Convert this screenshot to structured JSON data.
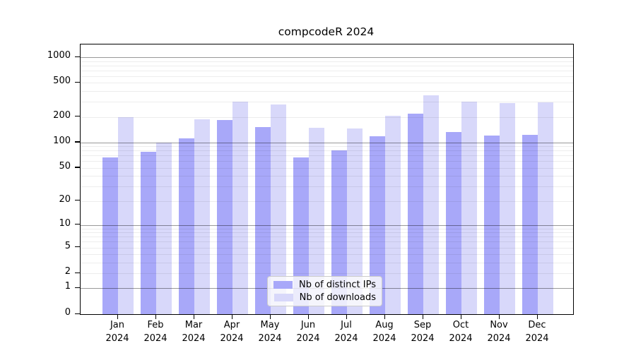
{
  "chart_data": {
    "type": "bar",
    "title": "compcodeR 2024",
    "categories": [
      "Jan",
      "Feb",
      "Mar",
      "Apr",
      "May",
      "Jun",
      "Jul",
      "Aug",
      "Sep",
      "Oct",
      "Nov",
      "Dec"
    ],
    "x_year": "2024",
    "series": [
      {
        "name": "Nb of distinct IPs",
        "color": "#a8a8f9",
        "values": [
          66,
          77,
          112,
          183,
          151,
          66,
          80,
          119,
          218,
          134,
          121,
          124
        ]
      },
      {
        "name": "Nb of downloads",
        "color": "#d8d8fa",
        "values": [
          200,
          100,
          188,
          300,
          281,
          150,
          147,
          207,
          360,
          302,
          289,
          295
        ]
      }
    ],
    "y_axis": {
      "scale": "log1p",
      "ticks": [
        0,
        1,
        2,
        5,
        10,
        20,
        50,
        100,
        200,
        500,
        1000
      ],
      "range": [
        0,
        1400
      ]
    },
    "grid": "on",
    "legend_position": "lower-center"
  },
  "colors": {
    "background": "#ffffff",
    "frame": "#000000",
    "major_grid": "#999999",
    "minor_grid": "#ededed"
  }
}
